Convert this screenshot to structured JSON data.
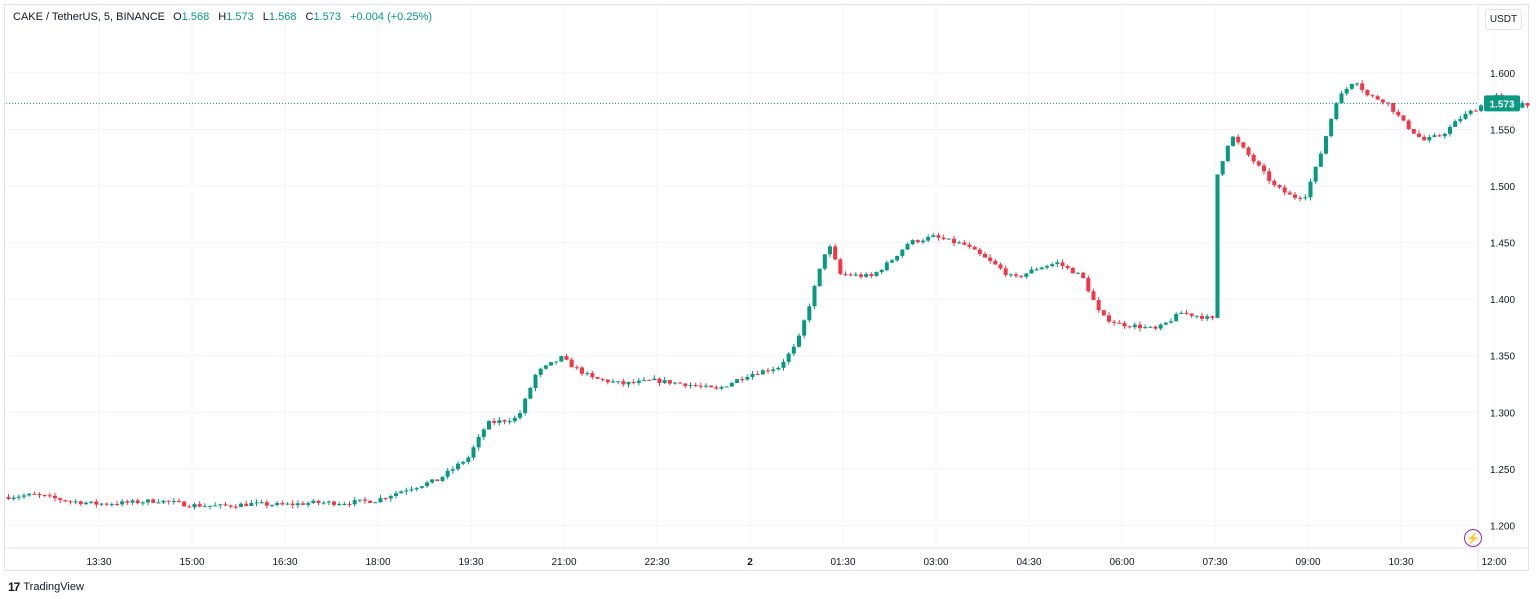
{
  "legend": {
    "symbol": "CAKE / TetherUS, 5, BINANCE",
    "o_label": "O",
    "o_value": "1.568",
    "h_label": "H",
    "h_value": "1.573",
    "l_label": "L",
    "l_value": "1.568",
    "c_label": "C",
    "c_value": "1.573",
    "change": "+0.004 (+0.25%)"
  },
  "currency_button": "USDT",
  "brand": "TradingView",
  "colors": {
    "up": "#089981",
    "down": "#f23645",
    "grid": "#f0f3fa",
    "text": "#131722"
  },
  "icons": {
    "logo": "tradingview-logo-icon",
    "alert": "lightning-icon"
  },
  "chart_data": {
    "type": "candlestick",
    "ylim": [
      1.18,
      1.66
    ],
    "yticks": [
      1.2,
      1.25,
      1.3,
      1.35,
      1.4,
      1.45,
      1.5,
      1.55,
      1.6
    ],
    "ytick_labels": [
      "1.200",
      "1.250",
      "1.300",
      "1.350",
      "1.400",
      "1.450",
      "1.500",
      "1.550",
      "1.600"
    ],
    "xticks": [
      {
        "label": "13:30",
        "hour": 13.5
      },
      {
        "label": "15:00",
        "hour": 15
      },
      {
        "label": "16:30",
        "hour": 16.5
      },
      {
        "label": "18:00",
        "hour": 18
      },
      {
        "label": "19:30",
        "hour": 19.5
      },
      {
        "label": "21:00",
        "hour": 21
      },
      {
        "label": "22:30",
        "hour": 22.5
      },
      {
        "label": "2",
        "hour": 24
      },
      {
        "label": "01:30",
        "hour": 25.5
      },
      {
        "label": "03:00",
        "hour": 27
      },
      {
        "label": "04:30",
        "hour": 28.5
      },
      {
        "label": "06:00",
        "hour": 30
      },
      {
        "label": "07:30",
        "hour": 31.5
      },
      {
        "label": "09:00",
        "hour": 33
      },
      {
        "label": "10:30",
        "hour": 34.5
      },
      {
        "label": "12:00",
        "hour": 36
      }
    ],
    "last_price": 1.573,
    "last_price_label": "1.573",
    "path": [
      [
        12.0,
        1.225
      ],
      [
        12.5,
        1.227
      ],
      [
        13.0,
        1.222
      ],
      [
        13.5,
        1.219
      ],
      [
        14.0,
        1.22
      ],
      [
        14.5,
        1.222
      ],
      [
        15.0,
        1.218
      ],
      [
        15.5,
        1.217
      ],
      [
        16.0,
        1.219
      ],
      [
        16.5,
        1.218
      ],
      [
        17.0,
        1.22
      ],
      [
        17.5,
        1.22
      ],
      [
        18.0,
        1.222
      ],
      [
        18.5,
        1.232
      ],
      [
        19.0,
        1.24
      ],
      [
        19.5,
        1.26
      ],
      [
        19.8,
        1.29
      ],
      [
        20.3,
        1.295
      ],
      [
        20.6,
        1.335
      ],
      [
        21.0,
        1.348
      ],
      [
        21.2,
        1.34
      ],
      [
        21.5,
        1.33
      ],
      [
        22.0,
        1.325
      ],
      [
        22.5,
        1.328
      ],
      [
        23.0,
        1.325
      ],
      [
        23.5,
        1.32
      ],
      [
        24.0,
        1.333
      ],
      [
        24.5,
        1.34
      ],
      [
        24.8,
        1.36
      ],
      [
        25.0,
        1.395
      ],
      [
        25.3,
        1.45
      ],
      [
        25.5,
        1.422
      ],
      [
        26.0,
        1.42
      ],
      [
        26.3,
        1.433
      ],
      [
        26.6,
        1.45
      ],
      [
        27.0,
        1.455
      ],
      [
        27.5,
        1.448
      ],
      [
        28.0,
        1.43
      ],
      [
        28.3,
        1.418
      ],
      [
        28.7,
        1.428
      ],
      [
        29.0,
        1.432
      ],
      [
        29.4,
        1.42
      ],
      [
        29.7,
        1.385
      ],
      [
        30.0,
        1.378
      ],
      [
        30.3,
        1.376
      ],
      [
        30.6,
        1.373
      ],
      [
        31.0,
        1.388
      ],
      [
        31.3,
        1.385
      ],
      [
        31.5,
        1.382
      ],
      [
        31.55,
        1.505
      ],
      [
        31.8,
        1.545
      ],
      [
        32.2,
        1.52
      ],
      [
        32.5,
        1.5
      ],
      [
        32.8,
        1.49
      ],
      [
        33.0,
        1.492
      ],
      [
        33.2,
        1.52
      ],
      [
        33.5,
        1.575
      ],
      [
        33.8,
        1.595
      ],
      [
        34.0,
        1.58
      ],
      [
        34.3,
        1.575
      ],
      [
        34.6,
        1.555
      ],
      [
        34.9,
        1.54
      ],
      [
        35.2,
        1.545
      ],
      [
        35.5,
        1.56
      ],
      [
        35.8,
        1.57
      ],
      [
        36.1,
        1.58
      ],
      [
        36.3,
        1.568
      ],
      [
        36.5,
        1.573
      ]
    ]
  }
}
